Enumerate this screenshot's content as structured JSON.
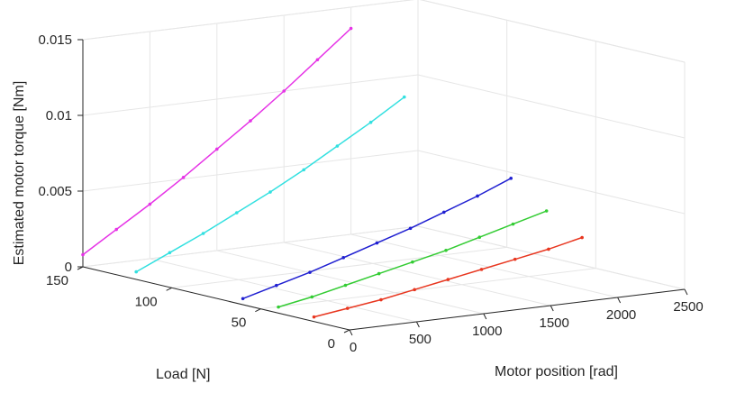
{
  "chart_data": {
    "type": "line3d",
    "xlabel": "Motor position [rad]",
    "ylabel": "Load [N]",
    "zlabel": "Estimated motor torque [Nm]",
    "xlim": [
      0,
      2500
    ],
    "ylim": [
      0,
      150
    ],
    "zlim": [
      0,
      0.015
    ],
    "xticks": [
      0,
      500,
      1000,
      1500,
      2000,
      2500
    ],
    "yticks": [
      0,
      50,
      100,
      150
    ],
    "zticks": [
      0,
      0.005,
      0.01,
      0.015
    ],
    "xtick_labels": [
      "0",
      "500",
      "1000",
      "1500",
      "2000",
      "2500"
    ],
    "ytick_labels": [
      "0",
      "50",
      "100",
      "150"
    ],
    "ztick_labels": [
      "0",
      "0.005",
      "0.01",
      "0.015"
    ],
    "grid": true,
    "series": [
      {
        "color": "#e8361f",
        "load": 20,
        "x": [
          0,
          250,
          500,
          750,
          1000,
          1250,
          1500,
          1750,
          2000
        ],
        "z": [
          0.0003,
          0.0006,
          0.0009,
          0.0013,
          0.0017,
          0.0021,
          0.0025,
          0.0029,
          0.0034
        ]
      },
      {
        "color": "#33cc33",
        "load": 40,
        "x": [
          0,
          250,
          500,
          750,
          1000,
          1250,
          1500,
          1750,
          2000
        ],
        "z": [
          0.0004,
          0.0008,
          0.0013,
          0.0018,
          0.0023,
          0.0028,
          0.0034,
          0.004,
          0.0046
        ]
      },
      {
        "color": "#1f1fd1",
        "load": 60,
        "x": [
          0,
          250,
          500,
          750,
          1000,
          1250,
          1500,
          1750,
          2000
        ],
        "z": [
          0.0004,
          0.001,
          0.0016,
          0.0023,
          0.003,
          0.0037,
          0.0045,
          0.0053,
          0.0062
        ]
      },
      {
        "color": "#33e0e0",
        "load": 120,
        "x": [
          0,
          250,
          500,
          750,
          1000,
          1250,
          1500,
          1750,
          2000
        ],
        "z": [
          0.0005,
          0.0015,
          0.0025,
          0.0036,
          0.0047,
          0.0059,
          0.0072,
          0.0085,
          0.0099
        ]
      },
      {
        "color": "#e633e6",
        "load": 150,
        "x": [
          0,
          250,
          500,
          750,
          1000,
          1250,
          1500,
          1750,
          2000
        ],
        "z": [
          0.0008,
          0.0022,
          0.0036,
          0.0051,
          0.0067,
          0.0083,
          0.01,
          0.0118,
          0.0136
        ]
      }
    ]
  }
}
